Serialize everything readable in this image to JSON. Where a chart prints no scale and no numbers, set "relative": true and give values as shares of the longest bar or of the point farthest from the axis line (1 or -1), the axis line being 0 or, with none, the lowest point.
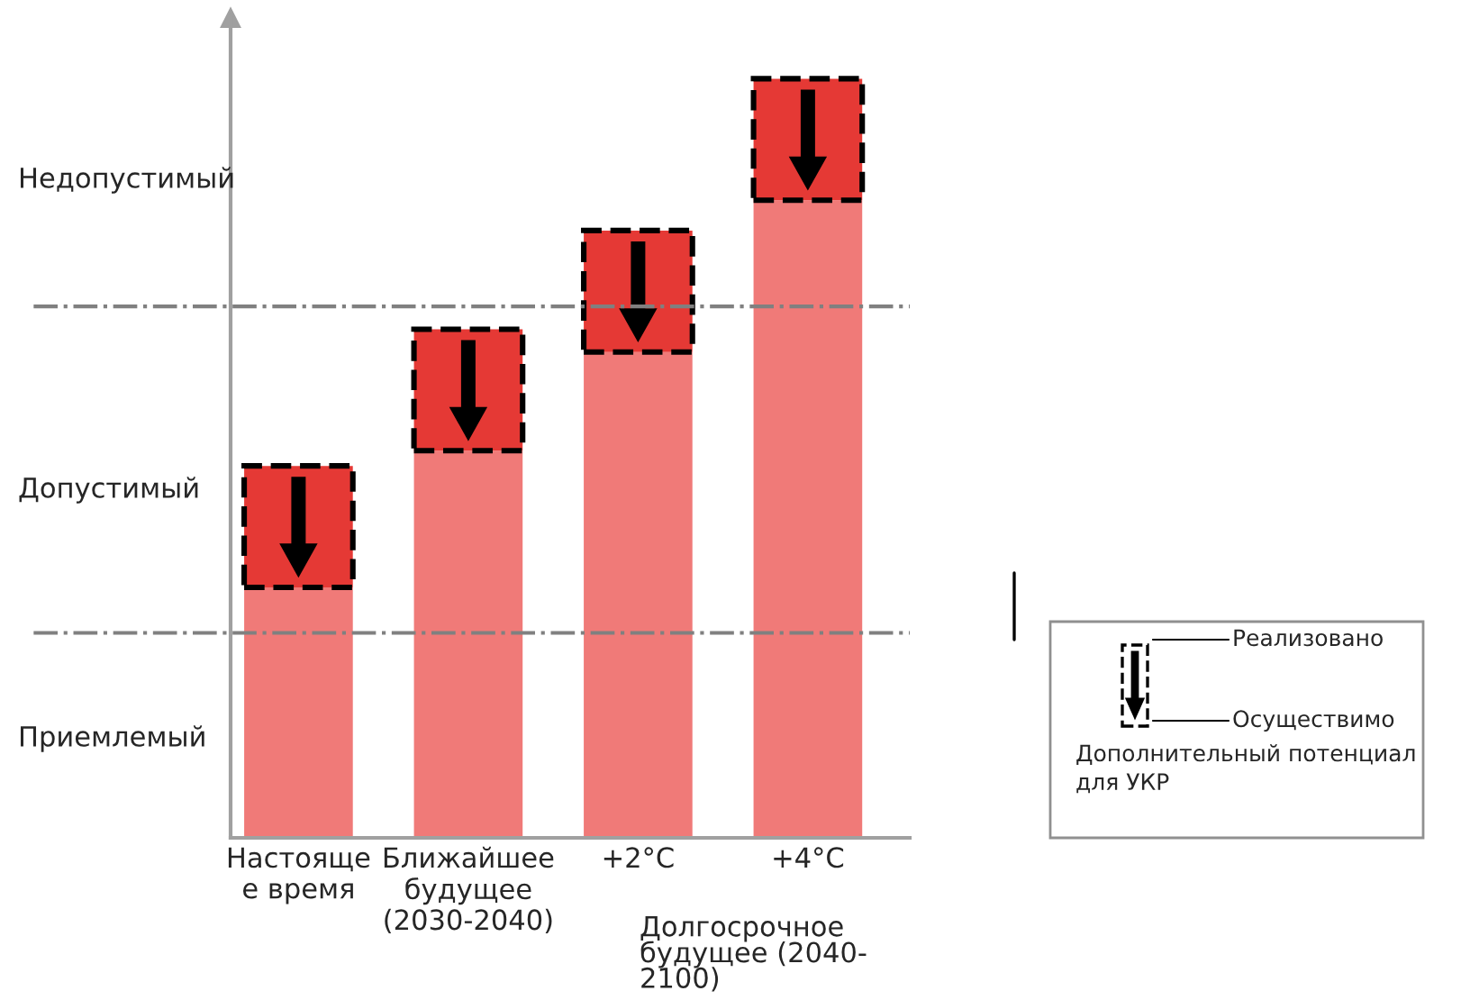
{
  "chart_data": {
    "type": "bar",
    "relative": true,
    "stacked": true,
    "categories": [
      "Настояще\nе время",
      "Ближайшее\nбудущее\n(2030-2040)",
      "+2°C",
      "+4°C"
    ],
    "series": [
      {
        "color": "#f07a78",
        "values": [
          0.33,
          0.51,
          0.64,
          0.84
        ]
      },
      {
        "color": "#e53935",
        "values": [
          0.16,
          0.16,
          0.16,
          0.16
        ],
        "line_style": "dashed"
      }
    ],
    "ref_lines": [
      {
        "axis": "y",
        "value": 0.27,
        "color": "#808080",
        "line_style": "dashdot"
      },
      {
        "axis": "y",
        "value": 0.7,
        "color": "#808080",
        "line_style": "dashdot"
      }
    ],
    "annotations": [
      "Недопустимый",
      "Допустимый",
      "Приемлемый",
      "Долгосрочное\nбудущее (2040-\n2100)",
      "Реализовано",
      "Осуществимо",
      "Дополнительный потенциал\nдля УКР"
    ]
  }
}
